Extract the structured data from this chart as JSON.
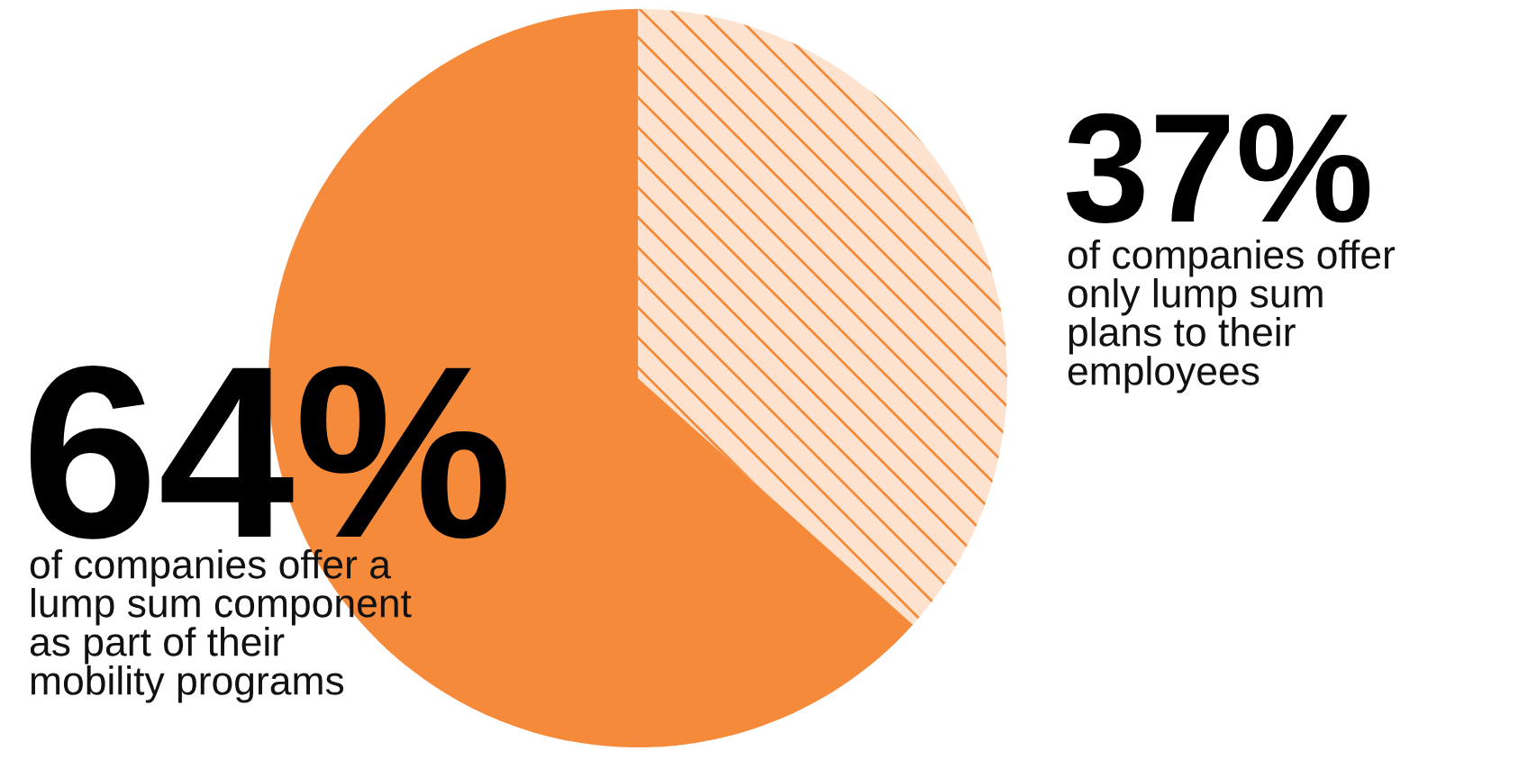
{
  "chart_data": {
    "type": "pie",
    "categories": [
      "of companies offer\nonly lump sum\nplans to their\nemployees",
      "of companies offer a\nlump sum component\nas part of their\nmobility programs"
    ],
    "values": [
      37,
      64
    ],
    "colors": [
      "#fde3cf",
      "#f58a3b"
    ],
    "value_labels": [
      "37%",
      "64%"
    ]
  }
}
